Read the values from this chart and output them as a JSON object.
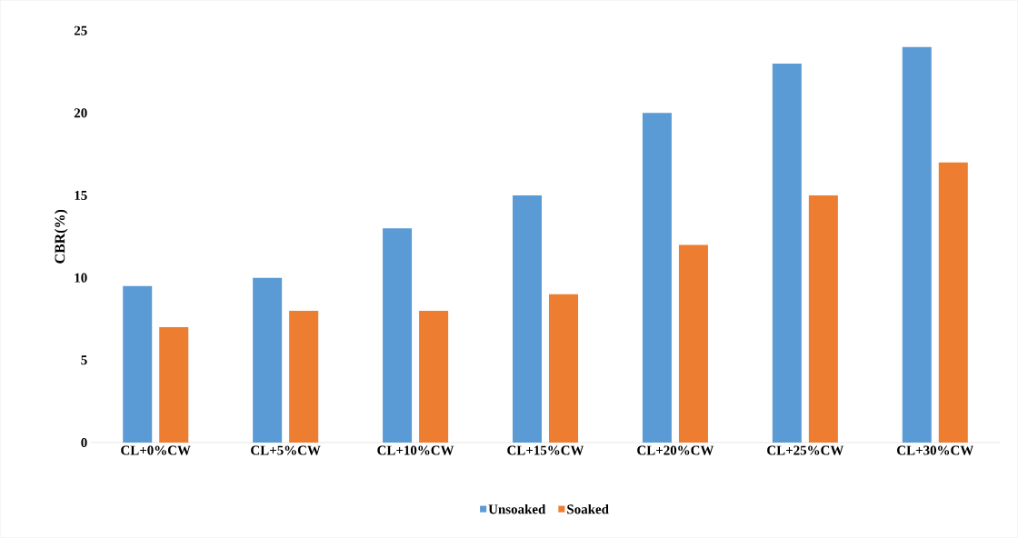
{
  "chart_data": {
    "type": "bar",
    "ylabel": "CBR(%)",
    "categories": [
      "CL+0%CW",
      "CL+5%CW",
      "CL+10%CW",
      "CL+15%CW",
      "CL+20%CW",
      "CL+25%CW",
      "CL+30%CW"
    ],
    "series": [
      {
        "name": "Unsoaked",
        "color": "#5b9bd5",
        "values": [
          9.5,
          10,
          13,
          15,
          20,
          23,
          24
        ]
      },
      {
        "name": "Soaked",
        "color": "#ed7d31",
        "values": [
          7,
          8,
          8,
          9,
          12,
          15,
          17
        ]
      }
    ],
    "ylim": [
      0,
      25
    ],
    "yticks": [
      0,
      5,
      10,
      15,
      20,
      25
    ],
    "legend": "bottom"
  }
}
